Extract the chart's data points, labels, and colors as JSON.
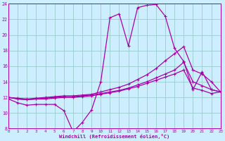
{
  "xlabel": "Windchill (Refroidissement éolien,°C)",
  "bg_color": "#cceeff",
  "line_color": "#aa00aa",
  "grid_color": "#99cccc",
  "xmin": 0,
  "xmax": 23,
  "ymin": 8,
  "ymax": 24,
  "yticks": [
    8,
    10,
    12,
    14,
    16,
    18,
    20,
    22,
    24
  ],
  "xticks": [
    0,
    1,
    2,
    3,
    4,
    5,
    6,
    7,
    8,
    9,
    10,
    11,
    12,
    13,
    14,
    15,
    16,
    17,
    18,
    19,
    20,
    21,
    22,
    23
  ],
  "series1_x": [
    0,
    1,
    2,
    3,
    4,
    5,
    6,
    7,
    8,
    9,
    10,
    11,
    12,
    13,
    14,
    15,
    16,
    17,
    18,
    19,
    20,
    21,
    22,
    23
  ],
  "series1_y": [
    11.8,
    11.3,
    11.0,
    11.1,
    11.1,
    11.1,
    10.3,
    7.6,
    8.8,
    10.4,
    14.0,
    22.2,
    22.7,
    18.6,
    23.5,
    23.8,
    23.9,
    22.4,
    18.3,
    16.6,
    13.0,
    15.3,
    13.0,
    12.7
  ],
  "series2_x": [
    0,
    1,
    2,
    3,
    4,
    5,
    6,
    7,
    8,
    9,
    10,
    11,
    12,
    13,
    14,
    15,
    16,
    17,
    18,
    19,
    20,
    21,
    22,
    23
  ],
  "series2_y": [
    12.0,
    11.8,
    11.7,
    11.8,
    11.9,
    12.0,
    12.1,
    12.1,
    12.2,
    12.3,
    12.5,
    12.7,
    12.9,
    13.2,
    13.6,
    14.0,
    14.5,
    15.0,
    15.5,
    16.5,
    14.0,
    13.5,
    13.0,
    12.7
  ],
  "series3_x": [
    0,
    1,
    2,
    3,
    4,
    5,
    6,
    7,
    8,
    9,
    10,
    11,
    12,
    13,
    14,
    15,
    16,
    17,
    18,
    19,
    20,
    21,
    22,
    23
  ],
  "series3_y": [
    12.0,
    11.9,
    11.8,
    11.9,
    12.0,
    12.1,
    12.2,
    12.2,
    12.3,
    12.4,
    12.7,
    13.0,
    13.3,
    13.7,
    14.3,
    14.9,
    15.7,
    16.7,
    17.6,
    18.5,
    15.5,
    15.0,
    14.0,
    12.7
  ],
  "series4_x": [
    0,
    1,
    2,
    3,
    4,
    5,
    6,
    7,
    8,
    9,
    10,
    11,
    12,
    13,
    14,
    15,
    16,
    17,
    18,
    19,
    20,
    21,
    22,
    23
  ],
  "series4_y": [
    12.0,
    11.8,
    11.7,
    11.8,
    11.8,
    11.9,
    12.0,
    12.0,
    12.1,
    12.2,
    12.4,
    12.6,
    12.8,
    13.1,
    13.4,
    13.8,
    14.2,
    14.6,
    15.0,
    15.5,
    13.2,
    12.9,
    12.5,
    12.7
  ]
}
